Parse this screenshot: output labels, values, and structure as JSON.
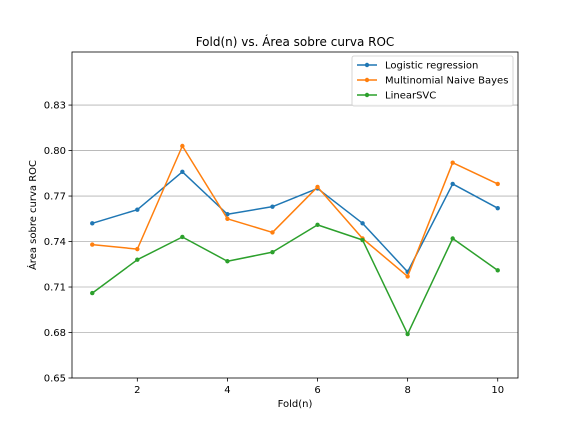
{
  "chart_data": {
    "type": "line",
    "title": "Fold(n) vs. Área sobre curva ROC",
    "xlabel": "Fold(n)",
    "ylabel": "Área sobre curva ROC",
    "x": [
      1,
      2,
      3,
      4,
      5,
      6,
      7,
      8,
      9,
      10
    ],
    "xlim": [
      0.55,
      10.45
    ],
    "ylim": [
      0.65,
      0.865
    ],
    "xticks": [
      2,
      4,
      6,
      8,
      10
    ],
    "yticks": [
      0.65,
      0.68,
      0.71,
      0.74,
      0.77,
      0.8,
      0.83
    ],
    "ytick_labels": [
      "0.65",
      "0.68",
      "0.71",
      "0.74",
      "0.77",
      "0.80",
      "0.83"
    ],
    "grid": "horizontal",
    "legend_position": "top-right",
    "series": [
      {
        "name": "Logistic regression",
        "color": "#1f77b4",
        "values": [
          0.752,
          0.761,
          0.786,
          0.758,
          0.763,
          0.775,
          0.752,
          0.72,
          0.778,
          0.762
        ]
      },
      {
        "name": "Multinomial Naive Bayes",
        "color": "#ff7f0e",
        "values": [
          0.738,
          0.735,
          0.803,
          0.755,
          0.746,
          0.776,
          0.742,
          0.717,
          0.792,
          0.778
        ]
      },
      {
        "name": "LinearSVC",
        "color": "#2ca02c",
        "values": [
          0.706,
          0.728,
          0.743,
          0.727,
          0.733,
          0.751,
          0.741,
          0.679,
          0.742,
          0.721
        ]
      }
    ]
  }
}
